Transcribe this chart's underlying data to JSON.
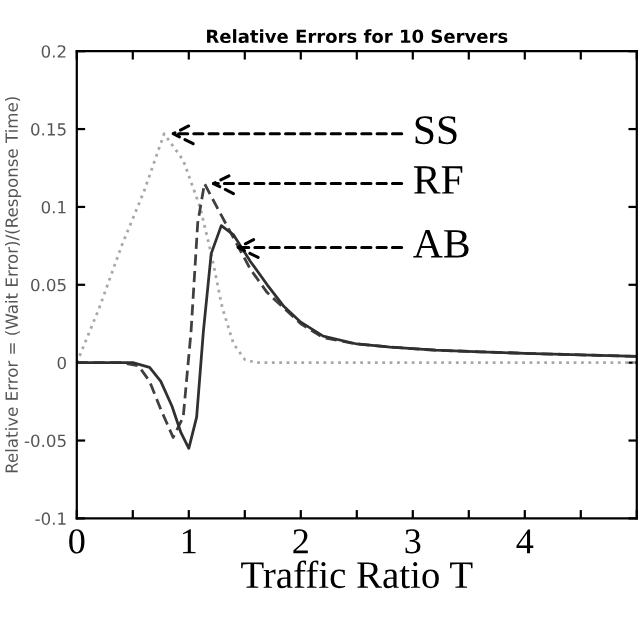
{
  "chart_data": {
    "type": "line",
    "title": "Relative Errors for 10 Servers",
    "xlabel": "Traffic Ratio T",
    "ylabel": "Relative Error = (Wait Error)/(Response Time)",
    "series": [
      {
        "color": "#a8a8a8",
        "line_style": "dotted",
        "x": [
          0,
          0.2,
          0.4,
          0.6,
          0.78,
          0.95,
          1.1,
          1.2,
          1.3,
          1.4,
          1.5,
          1.6,
          2,
          3,
          4,
          5
        ],
        "values": [
          0,
          0.035,
          0.075,
          0.11,
          0.147,
          0.13,
          0.1,
          0.07,
          0.035,
          0.012,
          0.002,
          0,
          0,
          0,
          0,
          0
        ]
      },
      {
        "color": "#404040",
        "line_style": "dashed",
        "x": [
          0,
          0.4,
          0.55,
          0.65,
          0.75,
          0.86,
          0.95,
          1.02,
          1.08,
          1.14,
          1.25,
          1.4,
          1.55,
          1.7,
          1.85,
          2.0,
          2.2,
          2.5,
          2.8,
          3.2,
          3.6,
          4.0,
          4.5,
          5
        ],
        "values": [
          0,
          0,
          -0.002,
          -0.012,
          -0.03,
          -0.048,
          -0.035,
          0.02,
          0.09,
          0.115,
          0.1,
          0.08,
          0.06,
          0.045,
          0.035,
          0.025,
          0.016,
          0.012,
          0.01,
          0.008,
          0.007,
          0.006,
          0.005,
          0.004
        ]
      },
      {
        "color": "#303030",
        "line_style": "solid",
        "x": [
          0,
          0.5,
          0.65,
          0.75,
          0.85,
          0.93,
          1.0,
          1.07,
          1.13,
          1.2,
          1.29,
          1.4,
          1.55,
          1.7,
          1.85,
          2.0,
          2.2,
          2.5,
          2.8,
          3.2,
          3.6,
          4.0,
          4.5,
          5
        ],
        "values": [
          0,
          0,
          -0.003,
          -0.012,
          -0.028,
          -0.045,
          -0.055,
          -0.035,
          0.02,
          0.07,
          0.088,
          0.082,
          0.065,
          0.05,
          0.036,
          0.026,
          0.017,
          0.012,
          0.01,
          0.008,
          0.007,
          0.006,
          0.005,
          0.004
        ]
      }
    ],
    "annotations": [
      {
        "text": "SS",
        "x": 0.78,
        "y": 0.147
      },
      {
        "text": "RF",
        "x": 1.14,
        "y": 0.115
      },
      {
        "text": "AB",
        "x": 1.36,
        "y": 0.074
      }
    ],
    "xlim": [
      0,
      5
    ],
    "xticks": [
      0,
      {
        "value": 0.5,
        "label": null
      },
      1,
      {
        "value": 1.5,
        "label": null
      },
      2,
      {
        "value": 2.5,
        "label": null
      },
      3,
      {
        "value": 3.5,
        "label": null
      },
      4,
      {
        "value": 4.5,
        "label": null
      },
      {
        "value": 5,
        "label": null
      }
    ],
    "ylim": [
      -0.1,
      0.2
    ],
    "yticks": [
      -0.1,
      -0.05,
      0,
      0.05,
      0.1,
      0.15,
      0.2
    ],
    "grid": false
  }
}
